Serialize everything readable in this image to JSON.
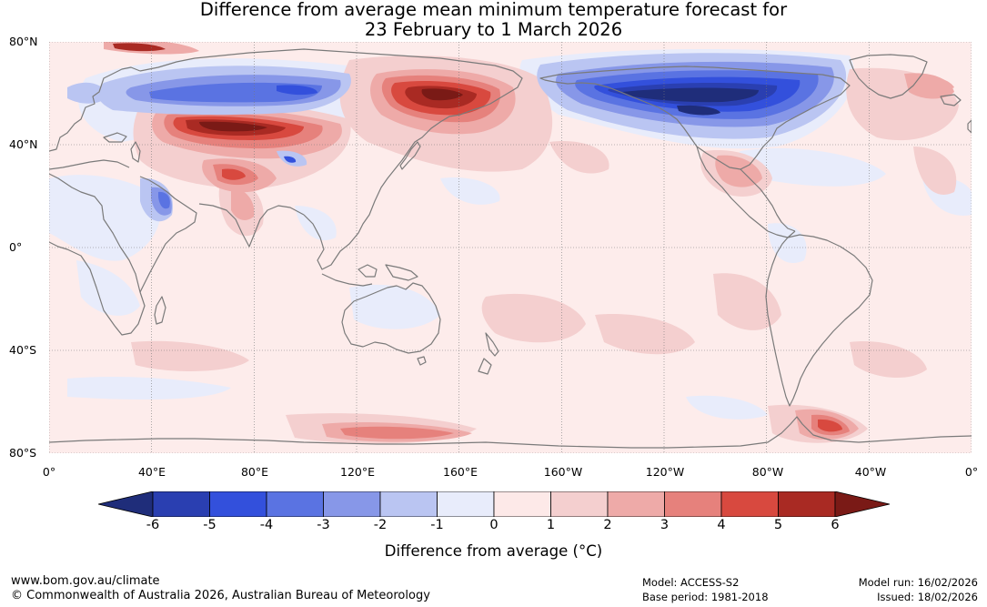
{
  "title": {
    "line1": "Difference from average mean minimum temperature forecast for",
    "line2": "23 February to 1 March 2026"
  },
  "map": {
    "lat_labels": [
      "80°N",
      "40°N",
      "0°",
      "40°S",
      "80°S"
    ],
    "lon_labels": [
      "0°",
      "40°E",
      "80°E",
      "120°E",
      "160°E",
      "160°W",
      "120°W",
      "80°W",
      "40°W",
      "0°"
    ],
    "colors": {
      "coast": "#7a7a7a",
      "grid": "#777777",
      "background": "#fdeceb"
    }
  },
  "colorbar": {
    "ticks": [
      "-6",
      "-5",
      "-4",
      "-3",
      "-2",
      "-1",
      "0",
      "1",
      "2",
      "3",
      "4",
      "5",
      "6"
    ],
    "colors": [
      "#1f2d7a",
      "#2a3fb1",
      "#3350dc",
      "#5a73e2",
      "#8797e8",
      "#bac5f2",
      "#e8ecfb",
      "#fde9e8",
      "#f4cfcf",
      "#eeaaa8",
      "#e6817c",
      "#d8493f",
      "#a92a23",
      "#7a1a16"
    ],
    "label": "Difference from average (°C)"
  },
  "footer": {
    "website": "www.bom.gov.au/climate",
    "copyright": "© Commonwealth of Australia 2026, Australian Bureau of Meteorology",
    "model": "Model: ACCESS-S2",
    "base_period": "Base period: 1981-2018",
    "model_run": "Model run: 16/02/2026",
    "issued": "Issued: 18/02/2026"
  }
}
